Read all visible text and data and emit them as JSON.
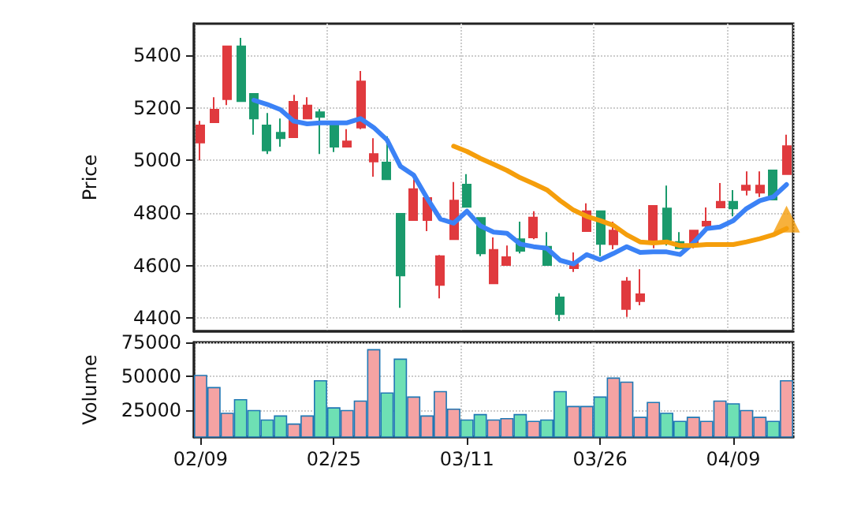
{
  "chart_data": [
    {
      "type": "candlestick",
      "ylabel": "Price",
      "categories": [
        null,
        null,
        null,
        null,
        null,
        null,
        null,
        null,
        null,
        null,
        null,
        null,
        null,
        null,
        null,
        null,
        null,
        null,
        null,
        null,
        null,
        null,
        null,
        null,
        null,
        null,
        null,
        null,
        null,
        null,
        null,
        null,
        null,
        null,
        null,
        null,
        null,
        null,
        null,
        null,
        null,
        null,
        null,
        null,
        null
      ],
      "ohlc": [
        [
          5068,
          5150,
          5000,
          5133
        ],
        [
          5145,
          5240,
          5145,
          5193
        ],
        [
          5233,
          5435,
          5210,
          5434
        ],
        [
          5434,
          5466,
          5225,
          5225
        ],
        [
          5253,
          5255,
          5098,
          5159
        ],
        [
          5133,
          5180,
          5024,
          5038
        ],
        [
          5105,
          5159,
          5052,
          5084
        ],
        [
          5088,
          5249,
          5088,
          5223
        ],
        [
          5159,
          5240,
          5159,
          5209
        ],
        [
          5183,
          5195,
          5024,
          5165
        ],
        [
          5139,
          5139,
          5032,
          5052
        ],
        [
          5052,
          5119,
          5052,
          5072
        ],
        [
          5125,
          5340,
          5119,
          5300
        ],
        [
          4996,
          5084,
          4938,
          5024
        ],
        [
          4992,
          5092,
          4928,
          4928
        ],
        [
          4797,
          4797,
          4439,
          4562
        ],
        [
          4773,
          4928,
          4773,
          4891
        ],
        [
          4773,
          4860,
          4731,
          4857
        ],
        [
          4526,
          4640,
          4475,
          4636
        ],
        [
          4700,
          4918,
          4700,
          4847
        ],
        [
          4908,
          4948,
          4823,
          4823
        ],
        [
          4781,
          4781,
          4636,
          4646
        ],
        [
          4532,
          4707,
          4532,
          4660
        ],
        [
          4602,
          4676,
          4602,
          4632
        ],
        [
          4700,
          4767,
          4646,
          4656
        ],
        [
          4707,
          4807,
          4700,
          4783
        ],
        [
          4672,
          4727,
          4602,
          4602
        ],
        [
          4479,
          4495,
          4389,
          4415
        ],
        [
          4590,
          4650,
          4576,
          4606
        ],
        [
          4731,
          4837,
          4731,
          4807
        ],
        [
          4807,
          4810,
          4636,
          4682
        ],
        [
          4681,
          4767,
          4662,
          4733
        ],
        [
          4435,
          4556,
          4405,
          4540
        ],
        [
          4465,
          4586,
          4449,
          4491
        ],
        [
          4697,
          4830,
          4666,
          4827
        ],
        [
          4817,
          4904,
          4676,
          4697
        ],
        [
          4690,
          4727,
          4666,
          4666
        ],
        [
          4676,
          4735,
          4666,
          4733
        ],
        [
          4751,
          4821,
          4740,
          4767
        ],
        [
          4821,
          4914,
          4821,
          4843
        ],
        [
          4843,
          4887,
          4787,
          4817
        ],
        [
          4888,
          4958,
          4867,
          4904
        ],
        [
          4877,
          4958,
          4861,
          4904
        ],
        [
          4962,
          4962,
          4851,
          4851
        ],
        [
          4948,
          5098,
          4948,
          5054
        ]
      ],
      "colors": [
        "#e03a3e",
        "#e03a3e",
        "#e03a3e",
        "#1a9a6c",
        "#1a9a6c",
        "#1a9a6c",
        "#1a9a6c",
        "#e03a3e",
        "#e03a3e",
        "#1a9a6c",
        "#1a9a6c",
        "#e03a3e",
        "#e03a3e",
        "#e03a3e",
        "#1a9a6c",
        "#1a9a6c",
        "#e03a3e",
        "#e03a3e",
        "#e03a3e",
        "#e03a3e",
        "#1a9a6c",
        "#1a9a6c",
        "#e03a3e",
        "#e03a3e",
        "#1a9a6c",
        "#e03a3e",
        "#1a9a6c",
        "#1a9a6c",
        "#e03a3e",
        "#e03a3e",
        "#1a9a6c",
        "#e03a3e",
        "#e03a3e",
        "#e03a3e",
        "#e03a3e",
        "#1a9a6c",
        "#1a9a6c",
        "#e03a3e",
        "#e03a3e",
        "#e03a3e",
        "#1a9a6c",
        "#e03a3e",
        "#e03a3e",
        "#1a9a6c",
        "#e03a3e"
      ],
      "series": [
        {
          "type": "line",
          "color": "#3b82f6",
          "values": [
            null,
            null,
            null,
            null,
            5229,
            5213,
            5193,
            5149,
            5139,
            5143,
            5143,
            5143,
            5159,
            5125,
            5078,
            4978,
            4944,
            4857,
            4777,
            4761,
            4807,
            4751,
            4727,
            4723,
            4682,
            4672,
            4666,
            4620,
            4606,
            4642,
            4622,
            4646,
            4672,
            4650,
            4652,
            4652,
            4642,
            4686,
            4741,
            4747,
            4771,
            4817,
            4847,
            4861,
            4908
          ]
        },
        {
          "type": "line",
          "color": "#f59e0b",
          "values": [
            null,
            null,
            null,
            null,
            null,
            null,
            null,
            null,
            null,
            null,
            null,
            null,
            null,
            null,
            null,
            null,
            null,
            null,
            null,
            5054,
            5034,
            5008,
            4985,
            4962,
            4934,
            4912,
            4888,
            4847,
            4811,
            4787,
            4771,
            4753,
            4717,
            4690,
            4686,
            4690,
            4676,
            4676,
            4680,
            4680,
            4680,
            4690,
            4702,
            4717,
            4741
          ]
        },
        {
          "type": "scatter",
          "marker": "triangle",
          "color": "#f59e0b",
          "values": [
            null,
            null,
            null,
            null,
            null,
            null,
            null,
            null,
            null,
            null,
            null,
            null,
            null,
            null,
            null,
            null,
            null,
            null,
            null,
            null,
            null,
            null,
            null,
            null,
            null,
            null,
            null,
            null,
            null,
            null,
            null,
            null,
            null,
            null,
            null,
            null,
            null,
            null,
            null,
            null,
            null,
            null,
            null,
            null,
            4777
          ]
        }
      ],
      "ylim": [
        4350,
        5520
      ],
      "yticks": [
        4400,
        4600,
        4800,
        5000,
        5200,
        5400
      ],
      "grid": true,
      "tick_labels": "y"
    },
    {
      "type": "bar",
      "ylabel": "Volume",
      "categories": [
        "02/09",
        null,
        null,
        null,
        null,
        null,
        null,
        null,
        null,
        null,
        "02/25",
        null,
        null,
        null,
        null,
        null,
        null,
        null,
        null,
        null,
        "03/11",
        null,
        null,
        null,
        null,
        null,
        null,
        null,
        null,
        null,
        "03/26",
        null,
        null,
        null,
        null,
        null,
        null,
        null,
        null,
        null,
        "04/09",
        null,
        null,
        null,
        null
      ],
      "values": [
        51000,
        42000,
        23000,
        33000,
        25000,
        18000,
        21000,
        15000,
        21000,
        47000,
        27000,
        25000,
        32000,
        70000,
        38000,
        63000,
        35000,
        21000,
        39000,
        26000,
        18000,
        22000,
        18000,
        19000,
        22000,
        17000,
        18000,
        39000,
        28000,
        28000,
        35000,
        49000,
        46000,
        20000,
        31000,
        23000,
        17000,
        20000,
        17000,
        32000,
        30000,
        25000,
        20000,
        17000,
        47000
      ],
      "colors": [
        "#f5a3a3",
        "#f5a3a3",
        "#f5a3a3",
        "#6ee0b4",
        "#6ee0b4",
        "#6ee0b4",
        "#6ee0b4",
        "#f5a3a3",
        "#f5a3a3",
        "#6ee0b4",
        "#6ee0b4",
        "#f5a3a3",
        "#f5a3a3",
        "#f5a3a3",
        "#6ee0b4",
        "#6ee0b4",
        "#f5a3a3",
        "#f5a3a3",
        "#f5a3a3",
        "#f5a3a3",
        "#6ee0b4",
        "#6ee0b4",
        "#f5a3a3",
        "#f5a3a3",
        "#6ee0b4",
        "#f5a3a3",
        "#6ee0b4",
        "#6ee0b4",
        "#f5a3a3",
        "#f5a3a3",
        "#6ee0b4",
        "#f5a3a3",
        "#f5a3a3",
        "#f5a3a3",
        "#f5a3a3",
        "#6ee0b4",
        "#6ee0b4",
        "#f5a3a3",
        "#f5a3a3",
        "#f5a3a3",
        "#6ee0b4",
        "#f5a3a3",
        "#f5a3a3",
        "#6ee0b4",
        "#f5a3a3"
      ],
      "ylim": [
        5000,
        75000
      ],
      "yticks": [
        25000,
        50000,
        75000
      ],
      "grid": true
    }
  ]
}
